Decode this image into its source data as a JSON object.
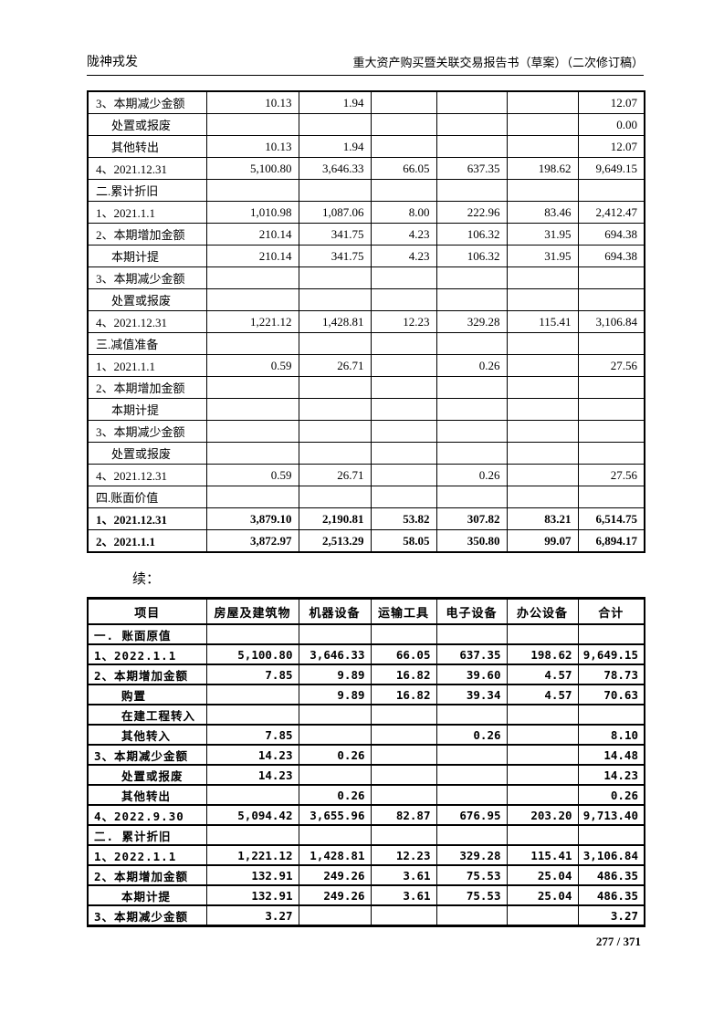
{
  "header": {
    "left": "陇神戎发",
    "right": "重大资产购买暨关联交易报告书（草案）（二次修订稿）"
  },
  "continuation": "续：",
  "footer": {
    "page_number": "277 / 371"
  },
  "table1": {
    "rows": [
      {
        "label": "3、本期减少金额",
        "indent": false,
        "bold": false,
        "values": [
          "10.13",
          "1.94",
          "",
          "",
          "",
          "12.07"
        ]
      },
      {
        "label": "处置或报废",
        "indent": true,
        "bold": false,
        "values": [
          "",
          "",
          "",
          "",
          "",
          "0.00"
        ]
      },
      {
        "label": "其他转出",
        "indent": true,
        "bold": false,
        "values": [
          "10.13",
          "1.94",
          "",
          "",
          "",
          "12.07"
        ]
      },
      {
        "label": "4、2021.12.31",
        "indent": false,
        "bold": false,
        "values": [
          "5,100.80",
          "3,646.33",
          "66.05",
          "637.35",
          "198.62",
          "9,649.15"
        ]
      },
      {
        "label": "二.累计折旧",
        "indent": false,
        "bold": false,
        "values": [
          "",
          "",
          "",
          "",
          "",
          ""
        ]
      },
      {
        "label": "1、2021.1.1",
        "indent": false,
        "bold": false,
        "values": [
          "1,010.98",
          "1,087.06",
          "8.00",
          "222.96",
          "83.46",
          "2,412.47"
        ]
      },
      {
        "label": "2、本期增加金额",
        "indent": false,
        "bold": false,
        "values": [
          "210.14",
          "341.75",
          "4.23",
          "106.32",
          "31.95",
          "694.38"
        ]
      },
      {
        "label": "本期计提",
        "indent": true,
        "bold": false,
        "values": [
          "210.14",
          "341.75",
          "4.23",
          "106.32",
          "31.95",
          "694.38"
        ]
      },
      {
        "label": "3、本期减少金额",
        "indent": false,
        "bold": false,
        "values": [
          "",
          "",
          "",
          "",
          "",
          ""
        ]
      },
      {
        "label": "处置或报废",
        "indent": true,
        "bold": false,
        "values": [
          "",
          "",
          "",
          "",
          "",
          ""
        ]
      },
      {
        "label": "4、2021.12.31",
        "indent": false,
        "bold": false,
        "values": [
          "1,221.12",
          "1,428.81",
          "12.23",
          "329.28",
          "115.41",
          "3,106.84"
        ]
      },
      {
        "label": "三.减值准备",
        "indent": false,
        "bold": false,
        "values": [
          "",
          "",
          "",
          "",
          "",
          ""
        ]
      },
      {
        "label": "1、2021.1.1",
        "indent": false,
        "bold": false,
        "values": [
          "0.59",
          "26.71",
          "",
          "0.26",
          "",
          "27.56"
        ]
      },
      {
        "label": "2、本期增加金额",
        "indent": false,
        "bold": false,
        "values": [
          "",
          "",
          "",
          "",
          "",
          ""
        ]
      },
      {
        "label": "本期计提",
        "indent": true,
        "bold": false,
        "values": [
          "",
          "",
          "",
          "",
          "",
          ""
        ]
      },
      {
        "label": "3、本期减少金额",
        "indent": false,
        "bold": false,
        "values": [
          "",
          "",
          "",
          "",
          "",
          ""
        ]
      },
      {
        "label": "处置或报废",
        "indent": true,
        "bold": false,
        "values": [
          "",
          "",
          "",
          "",
          "",
          ""
        ]
      },
      {
        "label": "4、2021.12.31",
        "indent": false,
        "bold": false,
        "values": [
          "0.59",
          "26.71",
          "",
          "0.26",
          "",
          "27.56"
        ]
      },
      {
        "label": "四.账面价值",
        "indent": false,
        "bold": false,
        "values": [
          "",
          "",
          "",
          "",
          "",
          ""
        ]
      },
      {
        "label": "1、2021.12.31",
        "indent": false,
        "bold": true,
        "values": [
          "3,879.10",
          "2,190.81",
          "53.82",
          "307.82",
          "83.21",
          "6,514.75"
        ]
      },
      {
        "label": "2、2021.1.1",
        "indent": false,
        "bold": true,
        "values": [
          "3,872.97",
          "2,513.29",
          "58.05",
          "350.80",
          "99.07",
          "6,894.17"
        ]
      }
    ]
  },
  "table2": {
    "headers": [
      "项目",
      "房屋及建筑物",
      "机器设备",
      "运输工具",
      "电子设备",
      "办公设备",
      "合计"
    ],
    "rows": [
      {
        "label": "一. 账面原值",
        "indent": false,
        "bold": true,
        "values": [
          "",
          "",
          "",
          "",
          "",
          ""
        ]
      },
      {
        "label": "1、2022.1.1",
        "indent": false,
        "bold": true,
        "values": [
          "5,100.80",
          "3,646.33",
          "66.05",
          "637.35",
          "198.62",
          "9,649.15"
        ]
      },
      {
        "label": "2、本期增加金额",
        "indent": false,
        "bold": true,
        "values": [
          "7.85",
          "9.89",
          "16.82",
          "39.60",
          "4.57",
          "78.73"
        ]
      },
      {
        "label": "购置",
        "indent": true,
        "bold": true,
        "values": [
          "",
          "9.89",
          "16.82",
          "39.34",
          "4.57",
          "70.63"
        ]
      },
      {
        "label": "在建工程转入",
        "indent": true,
        "bold": true,
        "values": [
          "",
          "",
          "",
          "",
          "",
          ""
        ]
      },
      {
        "label": "其他转入",
        "indent": true,
        "bold": true,
        "values": [
          "7.85",
          "",
          "",
          "0.26",
          "",
          "8.10"
        ]
      },
      {
        "label": "3、本期减少金额",
        "indent": false,
        "bold": true,
        "values": [
          "14.23",
          "0.26",
          "",
          "",
          "",
          "14.48"
        ]
      },
      {
        "label": "处置或报废",
        "indent": true,
        "bold": true,
        "values": [
          "14.23",
          "",
          "",
          "",
          "",
          "14.23"
        ]
      },
      {
        "label": "其他转出",
        "indent": true,
        "bold": true,
        "values": [
          "",
          "0.26",
          "",
          "",
          "",
          "0.26"
        ]
      },
      {
        "label": "4、2022.9.30",
        "indent": false,
        "bold": true,
        "values": [
          "5,094.42",
          "3,655.96",
          "82.87",
          "676.95",
          "203.20",
          "9,713.40"
        ]
      },
      {
        "label": "二. 累计折旧",
        "indent": false,
        "bold": true,
        "values": [
          "",
          "",
          "",
          "",
          "",
          ""
        ]
      },
      {
        "label": "1、2022.1.1",
        "indent": false,
        "bold": true,
        "values": [
          "1,221.12",
          "1,428.81",
          "12.23",
          "329.28",
          "115.41",
          "3,106.84"
        ]
      },
      {
        "label": "2、本期增加金额",
        "indent": false,
        "bold": true,
        "values": [
          "132.91",
          "249.26",
          "3.61",
          "75.53",
          "25.04",
          "486.35"
        ]
      },
      {
        "label": "本期计提",
        "indent": true,
        "bold": true,
        "values": [
          "132.91",
          "249.26",
          "3.61",
          "75.53",
          "25.04",
          "486.35"
        ]
      },
      {
        "label": "3、本期减少金额",
        "indent": false,
        "bold": true,
        "values": [
          "3.27",
          "",
          "",
          "",
          "",
          "3.27"
        ]
      }
    ]
  }
}
